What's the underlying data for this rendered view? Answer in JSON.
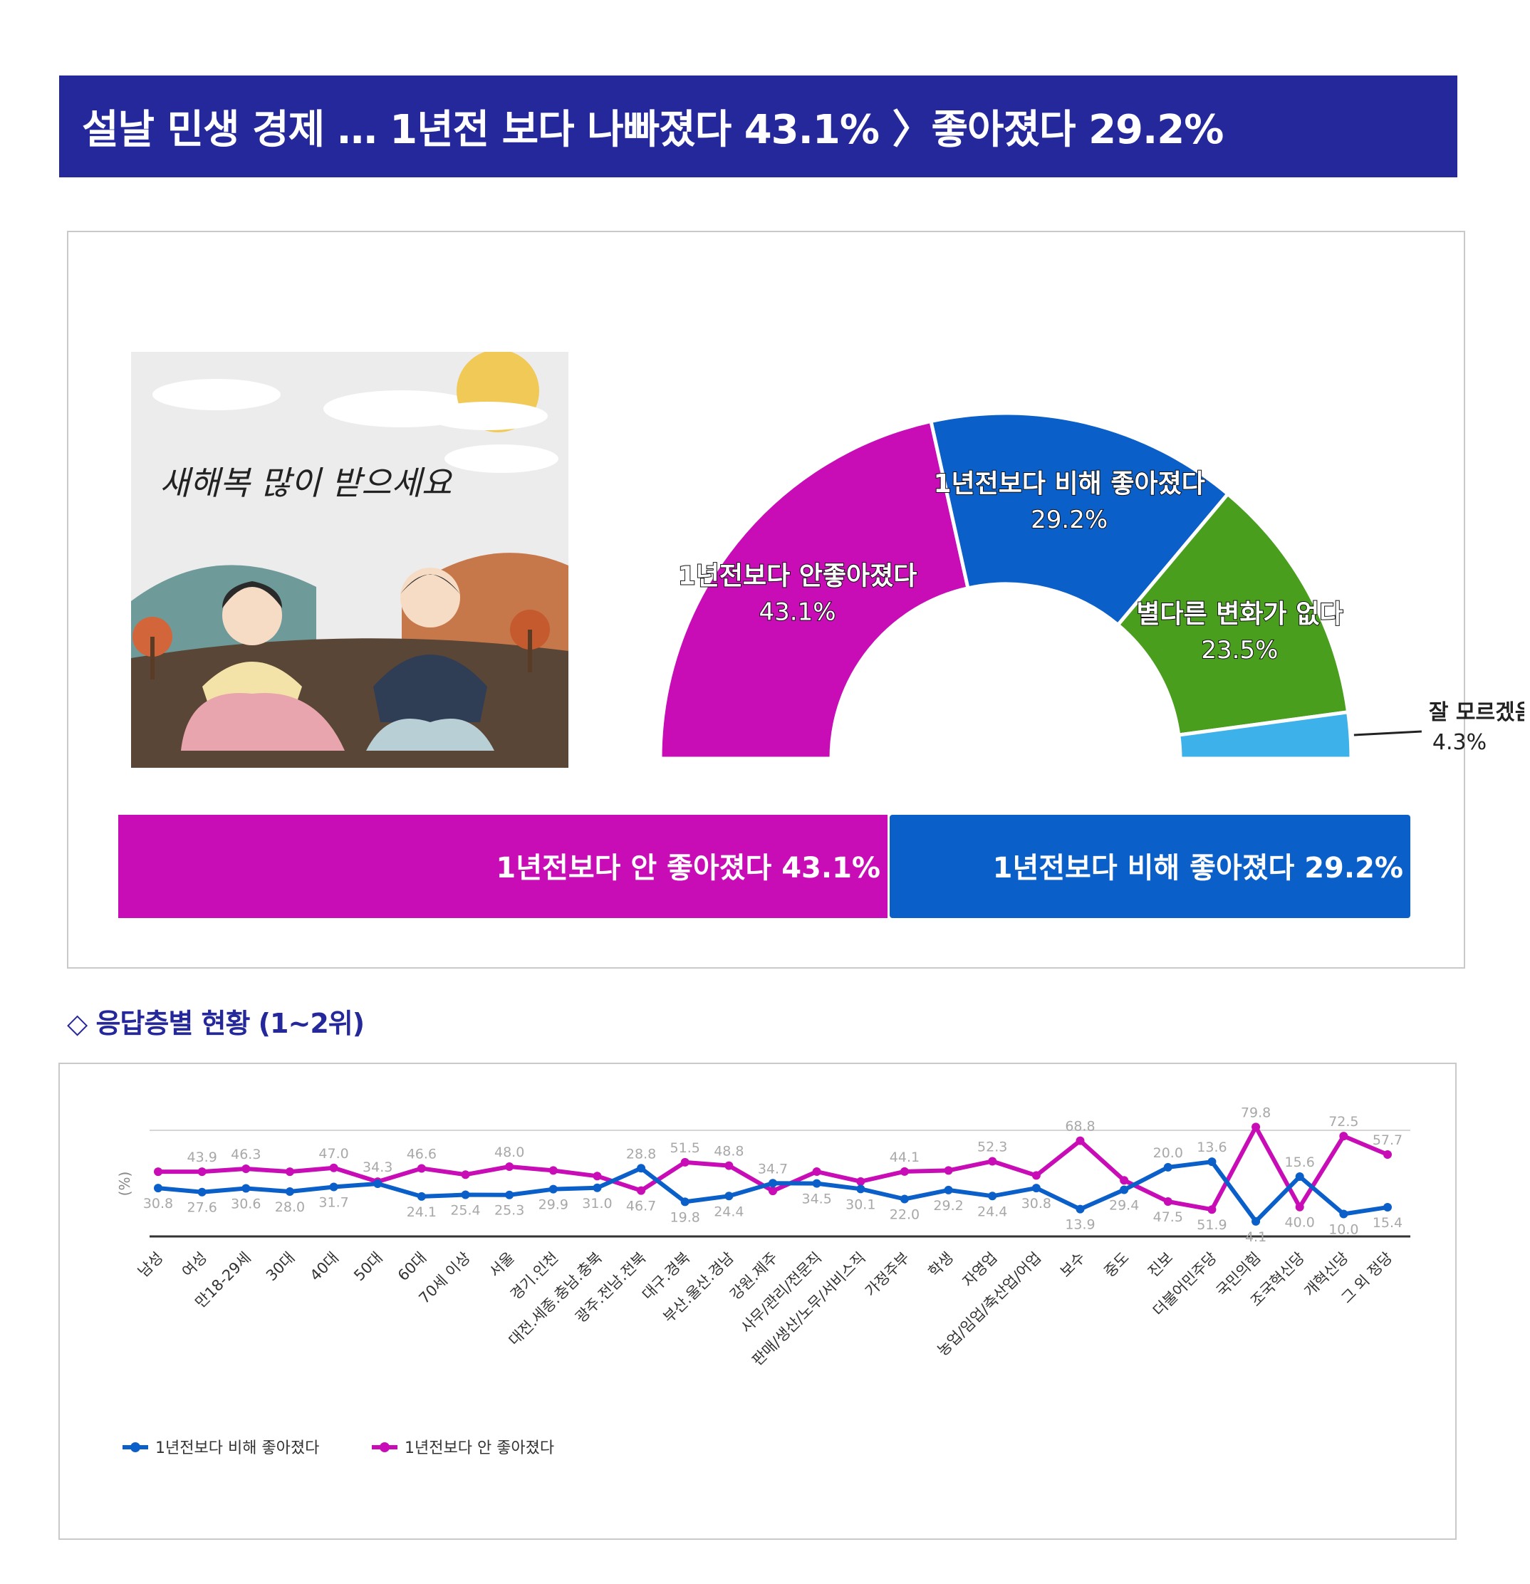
{
  "header": {
    "title": "설날 민생 경제 … 1년전 보다 나빠졌다 43.1% 〉좋아졌다 29.2%"
  },
  "illustration": {
    "caption": "새해복 많이 받으세요"
  },
  "section": {
    "title": "◇ 응답층별 현황 (1~2위)"
  },
  "colors": {
    "banner": "#25289a",
    "worse": "#c80cb6",
    "better": "#0b5fc9",
    "same": "#4a9e1e",
    "dontknow": "#3db2ea"
  },
  "summary_bar": {
    "worse_label": "1년전보다 안 좋아졌다 43.1%",
    "better_label": "1년전보다 비해 좋아졌다 29.2%"
  },
  "chart_data": [
    {
      "type": "pie",
      "variant": "half-donut",
      "slices": [
        {
          "label": "1년전보다 안좋아졌다",
          "value": 43.1,
          "display": "43.1%",
          "color": "#c80cb6"
        },
        {
          "label": "1년전보다 비해 좋아졌다",
          "value": 29.2,
          "display": "29.2%",
          "color": "#0b5fc9"
        },
        {
          "label": "별다른 변화가 없다",
          "value": 23.5,
          "display": "23.5%",
          "color": "#4a9e1e"
        },
        {
          "label": "잘 모르겠음",
          "value": 4.3,
          "display": "4.3%",
          "color": "#3db2ea"
        }
      ]
    },
    {
      "type": "line",
      "ylabel": "(%)",
      "ylim": [
        0,
        80
      ],
      "grid": false,
      "legend": "bottom-left",
      "categories": [
        "남성",
        "여성",
        "만18-29세",
        "30대",
        "40대",
        "50대",
        "60대",
        "70세 이상",
        "서울",
        "경기.인천",
        "대전.세종.충남.충북",
        "광주.전남.전북",
        "대구.경북",
        "부산.울산.경남",
        "강원.제주",
        "사무/관리/전문직",
        "판매/생산/노무/서비스직",
        "가정주부",
        "학생",
        "자영업",
        "농업/임업/축산업/어업",
        "보수",
        "중도",
        "진보",
        "더불어민주당",
        "국민의힘",
        "조국혁신당",
        "개혁신당",
        "그 외 정당"
      ],
      "series": [
        {
          "name": "1년전보다 비해 좋아졌다",
          "color": "#0b5fc9",
          "values": [
            30.8,
            27.6,
            30.6,
            28.0,
            31.7,
            34.3,
            24.1,
            25.4,
            25.3,
            29.9,
            31.0,
            46.7,
            19.8,
            24.4,
            34.7,
            34.5,
            30.1,
            22.0,
            29.2,
            24.4,
            30.8,
            13.9,
            29.4,
            47.5,
            51.9,
            4.1,
            40.0,
            10.0,
            15.4
          ]
        },
        {
          "name": "1년전보다 안 좋아졌다",
          "color": "#c80cb6",
          "values": [
            43.9,
            43.9,
            46.3,
            43.9,
            47.0,
            35.9,
            46.6,
            41.6,
            48.0,
            44.9,
            40.4,
            28.8,
            51.5,
            48.8,
            28.5,
            44.0,
            36.1,
            44.1,
            44.9,
            52.3,
            40.9,
            68.8,
            37.0,
            20.0,
            13.6,
            79.8,
            15.6,
            72.5,
            57.7
          ]
        }
      ],
      "data_labels": [
        {
          "i": 0,
          "s": 0,
          "t": "30.8"
        },
        {
          "i": 1,
          "s": 0,
          "t": "27.6"
        },
        {
          "i": 2,
          "s": 0,
          "t": "30.6"
        },
        {
          "i": 3,
          "s": 0,
          "t": "28.0"
        },
        {
          "i": 4,
          "s": 0,
          "t": "31.7"
        },
        {
          "i": 6,
          "s": 0,
          "t": "24.1"
        },
        {
          "i": 7,
          "s": 0,
          "t": "25.4"
        },
        {
          "i": 8,
          "s": 0,
          "t": "25.3"
        },
        {
          "i": 9,
          "s": 0,
          "t": "29.9"
        },
        {
          "i": 10,
          "s": 0,
          "t": "31.0"
        },
        {
          "i": 11,
          "s": 0,
          "t": "28.8"
        },
        {
          "i": 12,
          "s": 0,
          "t": "19.8"
        },
        {
          "i": 13,
          "s": 0,
          "t": "24.4"
        },
        {
          "i": 14,
          "s": 0,
          "t": "34.7"
        },
        {
          "i": 15,
          "s": 0,
          "t": "34.5"
        },
        {
          "i": 16,
          "s": 0,
          "t": "30.1"
        },
        {
          "i": 17,
          "s": 0,
          "t": "22.0"
        },
        {
          "i": 18,
          "s": 0,
          "t": "29.2"
        },
        {
          "i": 19,
          "s": 0,
          "t": "24.4"
        },
        {
          "i": 20,
          "s": 0,
          "t": "30.8"
        },
        {
          "i": 21,
          "s": 0,
          "t": "13.9"
        },
        {
          "i": 22,
          "s": 0,
          "t": "29.4"
        },
        {
          "i": 23,
          "s": 0,
          "t": "20.0"
        },
        {
          "i": 24,
          "s": 0,
          "t": "13.6"
        },
        {
          "i": 25,
          "s": 0,
          "t": "4.1"
        },
        {
          "i": 26,
          "s": 0,
          "t": "15.6"
        },
        {
          "i": 27,
          "s": 0,
          "t": "10.0"
        },
        {
          "i": 28,
          "s": 0,
          "t": "15.4"
        },
        {
          "i": 1,
          "s": 1,
          "t": "43.9"
        },
        {
          "i": 2,
          "s": 1,
          "t": "46.3"
        },
        {
          "i": 4,
          "s": 1,
          "t": "47.0"
        },
        {
          "i": 5,
          "s": 1,
          "t": "34.3"
        },
        {
          "i": 6,
          "s": 1,
          "t": "46.6"
        },
        {
          "i": 8,
          "s": 1,
          "t": "48.0"
        },
        {
          "i": 11,
          "s": 1,
          "t": "46.7"
        },
        {
          "i": 12,
          "s": 1,
          "t": "51.5"
        },
        {
          "i": 13,
          "s": 1,
          "t": "48.8"
        },
        {
          "i": 17,
          "s": 1,
          "t": "44.1"
        },
        {
          "i": 19,
          "s": 1,
          "t": "52.3"
        },
        {
          "i": 21,
          "s": 1,
          "t": "68.8"
        },
        {
          "i": 23,
          "s": 1,
          "t": "47.5"
        },
        {
          "i": 24,
          "s": 1,
          "t": "51.9"
        },
        {
          "i": 25,
          "s": 1,
          "t": "79.8"
        },
        {
          "i": 26,
          "s": 1,
          "t": "40.0"
        },
        {
          "i": 27,
          "s": 1,
          "t": "72.5"
        },
        {
          "i": 28,
          "s": 1,
          "t": "57.7"
        }
      ]
    }
  ]
}
